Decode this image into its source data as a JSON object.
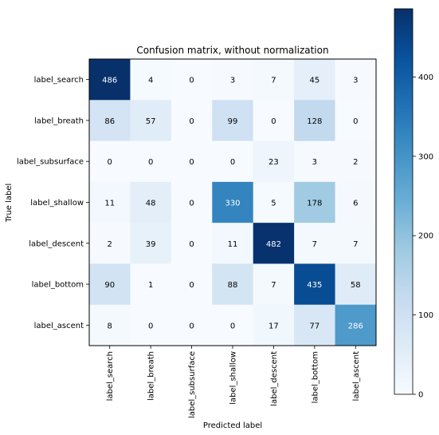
{
  "chart_data": {
    "type": "heatmap",
    "title": "Confusion matrix, without normalization",
    "xlabel": "Predicted label",
    "ylabel": "True label",
    "x_categories": [
      "label_search",
      "label_breath",
      "label_subsurface",
      "label_shallow",
      "label_descent",
      "label_bottom",
      "label_ascent"
    ],
    "y_categories": [
      "label_search",
      "label_breath",
      "label_subsurface",
      "label_shallow",
      "label_descent",
      "label_bottom",
      "label_ascent"
    ],
    "values": [
      [
        486,
        4,
        0,
        3,
        7,
        45,
        3
      ],
      [
        86,
        57,
        0,
        99,
        0,
        128,
        0
      ],
      [
        0,
        0,
        0,
        0,
        23,
        3,
        2
      ],
      [
        11,
        48,
        0,
        330,
        5,
        178,
        6
      ],
      [
        2,
        39,
        0,
        11,
        482,
        7,
        7
      ],
      [
        90,
        1,
        0,
        88,
        7,
        435,
        58
      ],
      [
        8,
        0,
        0,
        0,
        17,
        77,
        286
      ]
    ],
    "colormap": "Blues",
    "colorbar": {
      "range": [
        0,
        486
      ],
      "ticks": [
        0,
        100,
        200,
        300,
        400
      ],
      "tick_labels": [
        "0",
        "100",
        "200",
        "300",
        "400"
      ]
    },
    "text_color_threshold": 243,
    "colors": {
      "text_dark": "#000000",
      "text_light": "#ffffff",
      "frame": "#000000"
    }
  }
}
